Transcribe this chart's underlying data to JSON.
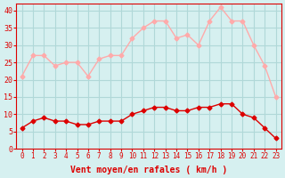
{
  "x": [
    0,
    1,
    2,
    3,
    4,
    5,
    6,
    7,
    8,
    9,
    10,
    11,
    12,
    13,
    14,
    15,
    16,
    17,
    18,
    19,
    20,
    21,
    22,
    23
  ],
  "wind_mean": [
    6,
    8,
    9,
    8,
    8,
    7,
    7,
    8,
    8,
    8,
    10,
    11,
    12,
    12,
    11,
    11,
    12,
    12,
    13,
    13,
    10,
    9,
    6,
    3
  ],
  "wind_gust": [
    21,
    27,
    27,
    24,
    25,
    25,
    21,
    26,
    27,
    27,
    32,
    35,
    37,
    37,
    32,
    33,
    30,
    37,
    41,
    37,
    37,
    30,
    24,
    15
  ],
  "bg_color": "#d6f0f0",
  "grid_color": "#b0d8d8",
  "line_mean_color": "#dd0000",
  "line_gust_color": "#ffaaaa",
  "xlabel": "Vent moyen/en rafales ( km/h )",
  "xlabel_color": "#dd0000",
  "tick_color": "#dd0000",
  "ylim": [
    0,
    42
  ],
  "yticks": [
    0,
    5,
    10,
    15,
    20,
    25,
    30,
    35,
    40
  ]
}
